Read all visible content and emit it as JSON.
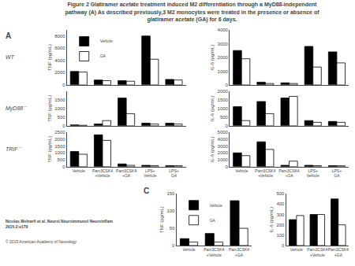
{
  "title": "Figure 2 Glatiramer acetate treatment induced M2 differentiation through a MyD88-independent\npathway (A) As described previously,3 M2 monocytes were treated in the presence or absence of\nglatiramer acetate (GA) for 6 days.",
  "annotations": [
    "A",
    "C",
    "Nicolas Molnarfi et al. Neurol Neuroimmunol Neuroinflam\n2015;2:e179",
    "© 2015 American Academy of Neurology"
  ],
  "chart_data": [
    {
      "type": "bar",
      "annotations": [
        "WT"
      ],
      "ylabel": "TNF (pg/mL)",
      "categories": [
        "Vehicle",
        "Pam3CSK4\n+Vehicle",
        "Pam3CSK4\n+GA",
        "LPS+\nVehicle",
        "LPS+\nGA"
      ],
      "series": [
        {
          "name": "Vehicle",
          "color": "black",
          "values": [
            2200,
            800,
            700,
            8000,
            900
          ]
        },
        {
          "name": "GA",
          "color": "white",
          "values": [
            2100,
            700,
            600,
            4200,
            800
          ]
        }
      ],
      "ylim": [
        0,
        9000
      ],
      "yticks": [
        0,
        2000,
        4000,
        6000,
        8000
      ],
      "grid": false,
      "legend": "upper left",
      "tick_labels": "y"
    },
    {
      "type": "bar",
      "ylabel": "IL-6 (pg/mL)",
      "categories": [
        "Vehicle",
        "Pam3CSK4\n+Vehicle",
        "Pam3CSK4\n+GA",
        "LPS+\nVehicle",
        "LPS+\nGA"
      ],
      "series": [
        {
          "name": "Vehicle",
          "color": "black",
          "values": [
            2500,
            200,
            150,
            2800,
            2400
          ]
        },
        {
          "name": "GA",
          "color": "white",
          "values": [
            1900,
            100,
            100,
            1300,
            1600
          ]
        }
      ],
      "ylim": [
        0,
        4000
      ],
      "yticks": [
        0,
        1000,
        2000,
        3000,
        4000
      ],
      "grid": false,
      "tick_labels": "y"
    },
    {
      "type": "bar",
      "annotations": [
        "MyD88⁻⁻"
      ],
      "ylabel": "TNF (pg/mL)",
      "categories": [
        "Vehicle",
        "Pam3CSK4\n+Vehicle",
        "Pam3CSK4\n+GA",
        "LPS+\nVehicle",
        "LPS+\nGA"
      ],
      "series": [
        {
          "name": "Vehicle",
          "color": "black",
          "values": [
            50,
            100,
            1600,
            150,
            150
          ]
        },
        {
          "name": "GA",
          "color": "white",
          "values": [
            30,
            300,
            700,
            100,
            100
          ]
        }
      ],
      "ylim": [
        0,
        2000
      ],
      "yticks": [
        0,
        500,
        1000,
        1500
      ],
      "grid": false,
      "tick_labels": "y"
    },
    {
      "type": "bar",
      "ylabel": "IL-6 (pg/mL)",
      "categories": [
        "Vehicle",
        "Pam3CSK4\n+Vehicle",
        "Pam3CSK4\n+GA",
        "LPS+\nVehicle",
        "LPS+\nGA"
      ],
      "series": [
        {
          "name": "Vehicle",
          "color": "black",
          "values": [
            1100,
            1400,
            1600,
            300,
            250
          ]
        },
        {
          "name": "GA",
          "color": "white",
          "values": [
            300,
            700,
            1700,
            200,
            200
          ]
        }
      ],
      "ylim": [
        0,
        2000
      ],
      "yticks": [
        0,
        500,
        1000,
        1500,
        2000
      ],
      "grid": false,
      "tick_labels": "y"
    },
    {
      "type": "bar",
      "annotations": [
        "TRIF⁻⁻"
      ],
      "ylabel": "TNF (pg/mL)",
      "categories": [
        "Vehicle",
        "Pam3CSK4\n+Vehicle",
        "Pam3CSK4\n+GA",
        "LPS+\nVehicle",
        "LPS+\nGA"
      ],
      "series": [
        {
          "name": "Vehicle",
          "color": "black",
          "values": [
            1100,
            2300,
            200,
            100,
            80
          ]
        },
        {
          "name": "GA",
          "color": "white",
          "values": [
            900,
            1900,
            100,
            80,
            70
          ]
        }
      ],
      "ylim": [
        0,
        2500
      ],
      "yticks": [
        0,
        500,
        1000,
        1500,
        2000,
        2500
      ],
      "grid": false
    },
    {
      "type": "bar",
      "ylabel": "IL-6 (pg/mL)",
      "categories": [
        "Vehicle",
        "Pam3CSK4\n+Vehicle",
        "Pam3CSK4\n+GA",
        "LPS+\nVehicle",
        "LPS+\nGA"
      ],
      "series": [
        {
          "name": "Vehicle",
          "color": "black",
          "values": [
            2000,
            3600,
            200,
            200,
            150
          ]
        },
        {
          "name": "GA",
          "color": "white",
          "values": [
            1600,
            2500,
            800,
            150,
            130
          ]
        }
      ],
      "ylim": [
        0,
        5000
      ],
      "yticks": [
        0,
        1000,
        2000,
        3000,
        4000,
        5000
      ],
      "grid": false
    },
    {
      "type": "bar",
      "ylabel": "TNF (pg/mL)",
      "categories": [
        "Vehicle",
        "Pam3CSK4\n+Vehicle",
        "Pam3CSK4\n+GA"
      ],
      "series": [
        {
          "name": "Vehicle",
          "color": "black",
          "values": [
            20,
            35,
            130
          ]
        },
        {
          "name": "GA",
          "color": "white",
          "values": [
            10,
            10,
            50
          ]
        }
      ],
      "ylim": [
        0,
        150
      ],
      "yticks": [
        0,
        50,
        100,
        150
      ],
      "grid": false,
      "legend": "upper left"
    },
    {
      "type": "bar",
      "ylabel": "IL-6 (pg/mL)",
      "categories": [
        "Vehicle",
        "Pam3CSK4\n+Vehicle",
        "Pam3CSK4\n+GA"
      ],
      "series": [
        {
          "name": "Vehicle",
          "color": "black",
          "values": [
            250,
            300,
            450
          ]
        },
        {
          "name": "GA",
          "color": "white",
          "values": [
            290,
            300,
            200
          ]
        }
      ],
      "ylim": [
        0,
        500
      ],
      "yticks": [
        0,
        100,
        200,
        300,
        400,
        500
      ],
      "grid": false
    }
  ]
}
